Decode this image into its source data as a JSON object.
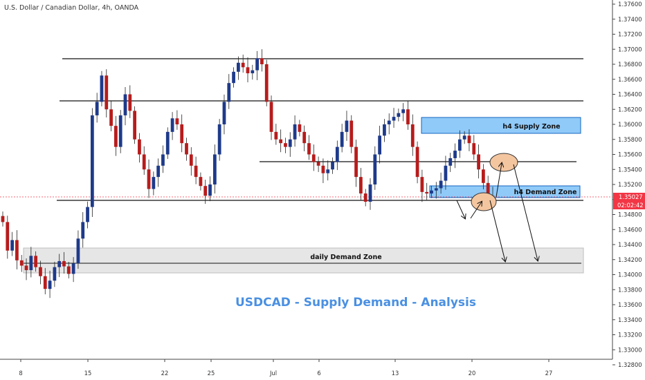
{
  "header": {
    "symbol_label": "U.S. Dollar / Canadian Dollar, 4h, OANDA"
  },
  "price_scale": {
    "ticks": [
      "1.37600",
      "1.37400",
      "1.37200",
      "1.37000",
      "1.36800",
      "1.36600",
      "1.36400",
      "1.36200",
      "1.36000",
      "1.35800",
      "1.35600",
      "1.35400",
      "1.35200",
      "1.35000",
      "1.34800",
      "1.34600",
      "1.34400",
      "1.34200",
      "1.34000",
      "1.33800",
      "1.33600",
      "1.33400",
      "1.33200",
      "1.33000",
      "1.32800"
    ],
    "current_price": "1.35027",
    "countdown": "02:02:42",
    "current_color": "#f23645"
  },
  "time_scale": {
    "ticks": [
      "8",
      "15",
      "22",
      "25",
      "Jul",
      "6",
      "13",
      "20",
      "27"
    ]
  },
  "annotations": {
    "supply_zone_label": "h4 Supply Zone",
    "demand_zone_label": "h4 Demand Zone",
    "daily_zone_label": "daily Demand Zone",
    "analysis_title": "USDCAD - Supply Demand - Analysis"
  },
  "colors": {
    "bull": "#26a69a",
    "bear": "#ef5350",
    "candle_up_body": "#1e3a8a",
    "candle_down_body": "#b71c1c",
    "zone_blue": "#90caf9",
    "zone_gray": "#e6e6e6",
    "circle_fill": "#f4c6a0",
    "accent_blue": "#4a90e2"
  },
  "chart_data": {
    "type": "candlestick",
    "symbol": "U.S. Dollar / Canadian Dollar, 4h, OANDA",
    "y_axis": {
      "min": 1.328,
      "max": 1.376,
      "unit": "price"
    },
    "x_tick_labels": [
      "8",
      "15",
      "22",
      "25",
      "Jul",
      "6",
      "13",
      "20",
      "27"
    ],
    "horizontal_levels": [
      1.3688,
      1.3632,
      1.355,
      1.3497,
      1.3413
    ],
    "zones": [
      {
        "name": "h4 Supply Zone",
        "high": 1.3608,
        "low": 1.3587
      },
      {
        "name": "h4 Demand Zone",
        "high": 1.3517,
        "low": 1.35
      },
      {
        "name": "daily Demand Zone",
        "high": 1.3434,
        "low": 1.34
      }
    ],
    "candles_close": [
      1.347,
      1.3432,
      1.3446,
      1.3419,
      1.3412,
      1.3406,
      1.3425,
      1.341,
      1.3398,
      1.3381,
      1.3392,
      1.341,
      1.3418,
      1.3411,
      1.3401,
      1.3415,
      1.3448,
      1.347,
      1.349,
      1.3612,
      1.363,
      1.3665,
      1.362,
      1.3598,
      1.357,
      1.3612,
      1.364,
      1.3618,
      1.358,
      1.356,
      1.354,
      1.3514,
      1.353,
      1.3545,
      1.356,
      1.359,
      1.3608,
      1.36,
      1.3575,
      1.356,
      1.3545,
      1.353,
      1.3518,
      1.3505,
      1.352,
      1.356,
      1.36,
      1.363,
      1.3655,
      1.367,
      1.3682,
      1.3676,
      1.3668,
      1.3672,
      1.3688,
      1.368,
      1.363,
      1.359,
      1.358,
      1.3575,
      1.357,
      1.358,
      1.36,
      1.359,
      1.3575,
      1.356,
      1.355,
      1.3545,
      1.3535,
      1.354,
      1.355,
      1.357,
      1.359,
      1.3605,
      1.357,
      1.353,
      1.3508,
      1.3497,
      1.352,
      1.356,
      1.3585,
      1.36,
      1.3605,
      1.361,
      1.3615,
      1.362,
      1.36,
      1.357,
      1.353,
      1.351,
      1.3508,
      1.3512,
      1.3515,
      1.3525,
      1.3545,
      1.3555,
      1.3565,
      1.358,
      1.3585,
      1.3575,
      1.356,
      1.354,
      1.3522,
      1.3505,
      1.3503
    ]
  }
}
